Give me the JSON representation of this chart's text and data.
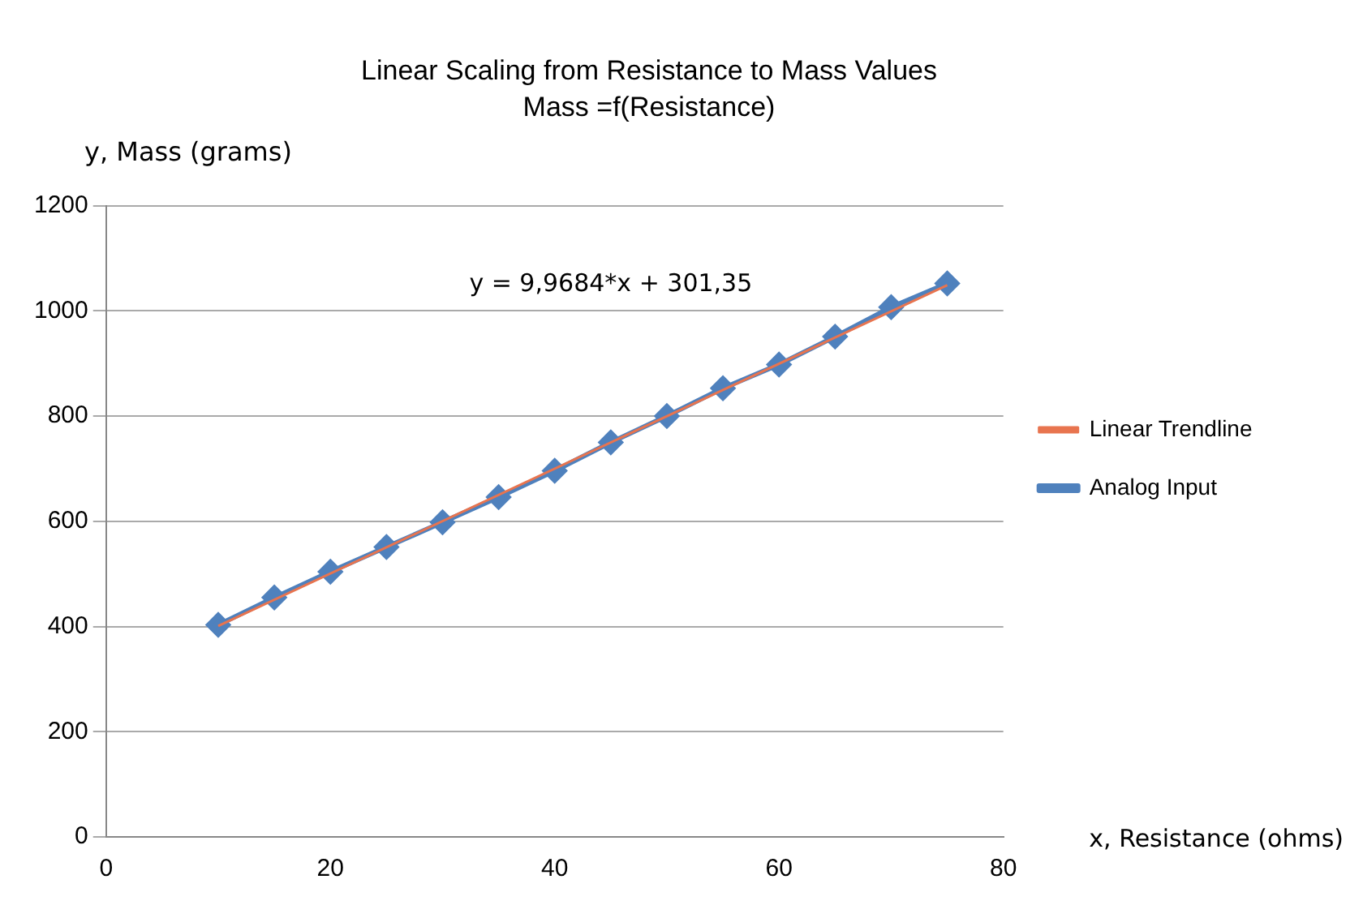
{
  "chart_data": {
    "type": "line",
    "title": "Linear Scaling from Resistance to Mass Values",
    "subtitle": "Mass =f(Resistance)",
    "xlabel": "x, Resistance (ohms)",
    "ylabel": "y, Mass (grams)",
    "xlim": [
      0,
      80
    ],
    "xticks": [
      0,
      20,
      40,
      60,
      80
    ],
    "ylim": [
      0,
      1200
    ],
    "yticks": [
      0,
      200,
      400,
      600,
      800,
      1000,
      1200
    ],
    "grid": "y",
    "legend": "right",
    "marker": "diamond",
    "series": [
      {
        "name": "Analog Input",
        "color": "#4f81bd",
        "x": [
          10,
          15,
          20,
          25,
          30,
          35,
          40,
          45,
          50,
          55,
          60,
          65,
          70,
          75
        ],
        "values": [
          403,
          455,
          504,
          551,
          598,
          646,
          696,
          750,
          800,
          853,
          898,
          951,
          1007,
          1052
        ]
      },
      {
        "name": "Linear Trendline",
        "type": "line",
        "marker": "none",
        "color": "#e8744f",
        "x": [
          10,
          75
        ],
        "values": [
          401,
          1049
        ]
      }
    ],
    "annotations": [
      "y = 9,9684*x + 301,35"
    ]
  }
}
